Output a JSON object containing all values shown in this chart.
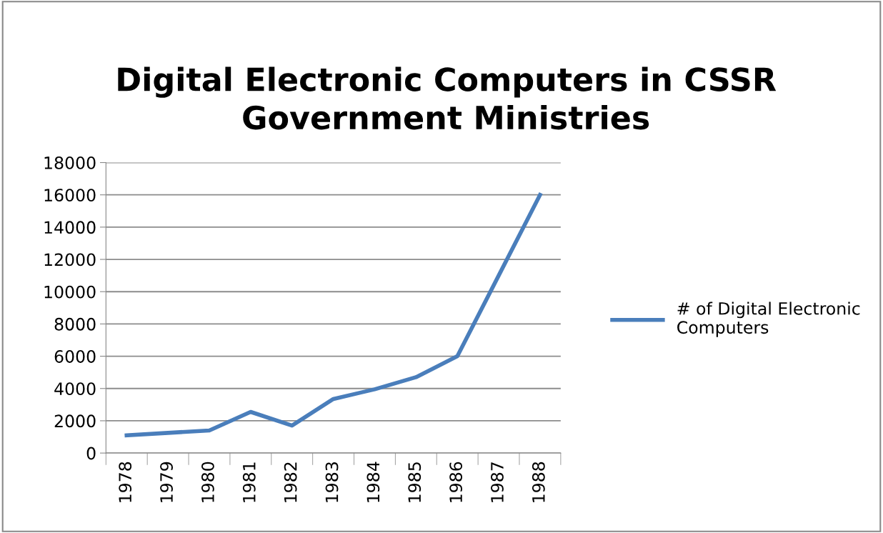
{
  "chart_data": {
    "type": "line",
    "title": "Digital Electronic Computers in CSSR\nGovernment Ministries",
    "categories": [
      "1978",
      "1979",
      "1980",
      "1981",
      "1982",
      "1983",
      "1984",
      "1985",
      "1986",
      "1987",
      "1988"
    ],
    "series": [
      {
        "name": "# of Digital Electronic\nComputers",
        "color": "#4a7ebb",
        "values": [
          1100,
          1250,
          1400,
          2550,
          1700,
          3350,
          3950,
          4700,
          6000,
          11000,
          16000
        ]
      }
    ],
    "ylim": [
      0,
      18000
    ],
    "yticks": [
      0,
      2000,
      4000,
      6000,
      8000,
      10000,
      12000,
      14000,
      16000,
      18000
    ],
    "grid": "y",
    "legend": "right",
    "marker": "none",
    "line_style": "solid"
  }
}
